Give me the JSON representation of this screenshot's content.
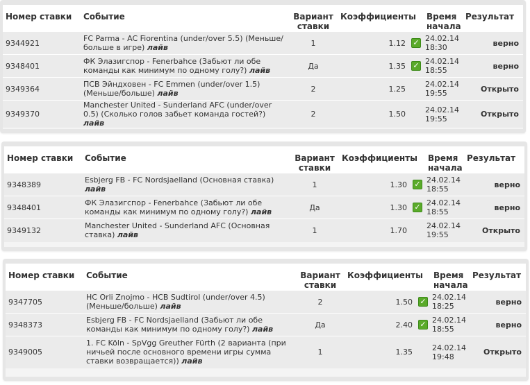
{
  "headers": {
    "num": "Номер ставки",
    "event": "Событие",
    "variant": "Вариант ставки",
    "coef": "Коэффициенты",
    "time": "Время начала",
    "result": "Результат"
  },
  "live_label": "лайв",
  "colors": {
    "check": "#5aaa2a",
    "row_bg": "#ebebeb",
    "panel_border": "#e6e6e6"
  },
  "tables": [
    {
      "rows": [
        {
          "num": "9344921",
          "event": "FC Parma - AC Fiorentina (under/over 5.5) (Меньше/больше в игре)",
          "variant": "1",
          "coef": "1.12",
          "check": true,
          "date": "24.02.14",
          "time": "18:30",
          "result": "верно"
        },
        {
          "num": "9348401",
          "event": "ФК Элазигспор - Fenerbahce (Забьют ли обе команды как минимум по одному голу?)",
          "variant": "Да",
          "coef": "1.35",
          "check": true,
          "date": "24.02.14",
          "time": "18:55",
          "result": "верно"
        },
        {
          "num": "9349364",
          "event": "ПСВ Эйндховен - FC Emmen (under/over 1.5) (Меньше/больше)",
          "variant": "2",
          "coef": "1.25",
          "check": false,
          "date": "24.02.14",
          "time": "19:55",
          "result": "Открыто"
        },
        {
          "num": "9349370",
          "event": "Manchester United - Sunderland AFC (under/over 0.5) (Сколько голов забьет команда гостей?)",
          "variant": "2",
          "coef": "1.50",
          "check": false,
          "date": "24.02.14",
          "time": "19:55",
          "result": "Открыто"
        }
      ]
    },
    {
      "rows": [
        {
          "num": "9348389",
          "event": "Esbjerg FB - FC Nordsjaelland (Основная ставка)",
          "variant": "1",
          "coef": "1.30",
          "check": true,
          "date": "24.02.14",
          "time": "18:55",
          "result": "верно"
        },
        {
          "num": "9348401",
          "event": "ФК Элазигспор - Fenerbahce (Забьют ли обе команды как минимум по одному голу?)",
          "variant": "Да",
          "coef": "1.30",
          "check": true,
          "date": "24.02.14",
          "time": "18:55",
          "result": "верно"
        },
        {
          "num": "9349132",
          "event": "Manchester United - Sunderland AFC (Основная ставка)",
          "variant": "1",
          "coef": "1.70",
          "check": false,
          "date": "24.02.14",
          "time": "19:55",
          "result": "Открыто"
        }
      ]
    },
    {
      "rows": [
        {
          "num": "9347705",
          "event": "HC Orli Znojmo - HCB Sudtirol (under/over 4.5) (Меньше/больше)",
          "variant": "2",
          "coef": "1.50",
          "check": true,
          "date": "24.02.14",
          "time": "18:25",
          "result": "верно"
        },
        {
          "num": "9348373",
          "event": "Esbjerg FB - FC Nordsjaelland (Забьют ли обе команды как минимум по одному голу?)",
          "variant": "Да",
          "coef": "2.40",
          "check": true,
          "date": "24.02.14",
          "time": "18:55",
          "result": "верно"
        },
        {
          "num": "9349005",
          "event": "1. FC Köln - SpVgg Greuther Fürth (2 варианта (при ничьей после основного времени игры сумма ставки возвращается))",
          "variant": "1",
          "coef": "1.35",
          "check": false,
          "date": "24.02.14",
          "time": "19:48",
          "result": "Открыто"
        }
      ]
    }
  ]
}
